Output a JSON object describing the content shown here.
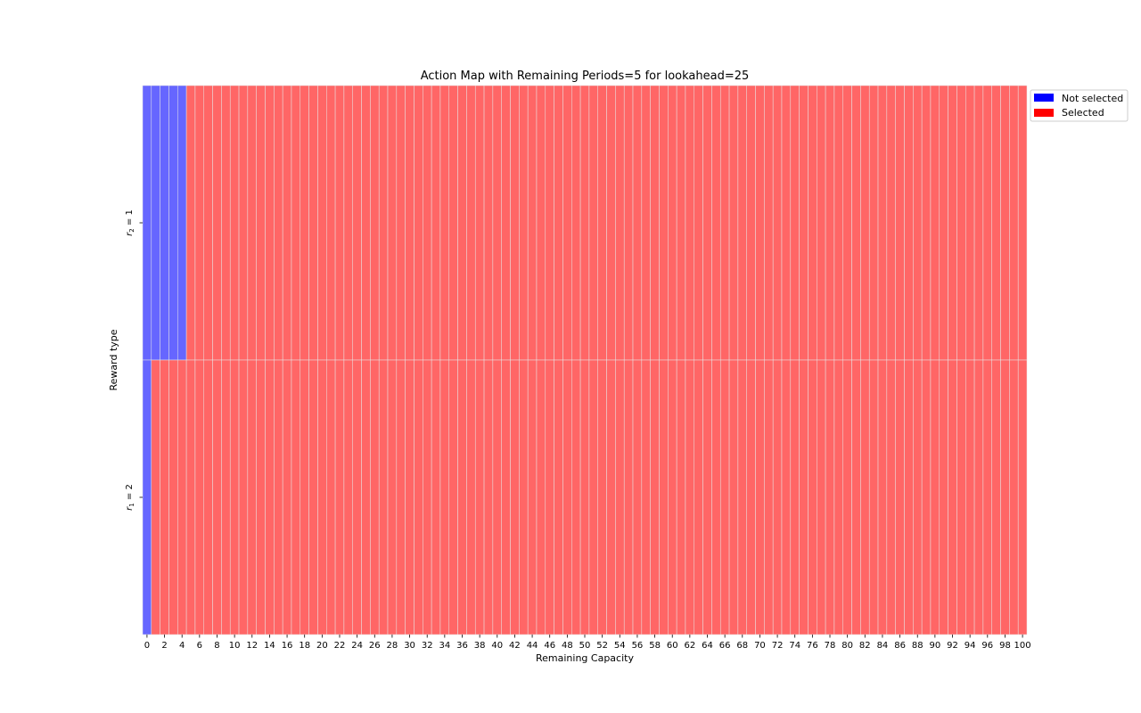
{
  "chart_data": {
    "type": "heatmap",
    "title": "Action Map with Remaining Periods=5 for lookahead=25",
    "xlabel": "Remaining Capacity",
    "ylabel": "Reward type",
    "x_min": 0,
    "x_max": 100,
    "x_tick_step": 2,
    "rows": [
      {
        "label_base": "r",
        "label_sub": "2",
        "label_value": "= 1",
        "not_selected_up_to": 4
      },
      {
        "label_base": "r",
        "label_sub": "1",
        "label_value": "= 2",
        "not_selected_up_to": 0
      }
    ],
    "encoding": "0 = Not selected, 1 = Selected; capacities 0..not_selected_up_to are Not selected, the rest Selected",
    "legend": {
      "placement": "outside top-right",
      "entries": [
        {
          "label": "Not selected",
          "color": "#0000ff"
        },
        {
          "label": "Selected",
          "color": "#ff0000"
        }
      ]
    },
    "cell_colors": {
      "not_selected": "#6666ff",
      "selected": "#ff6666"
    },
    "grid": false
  }
}
